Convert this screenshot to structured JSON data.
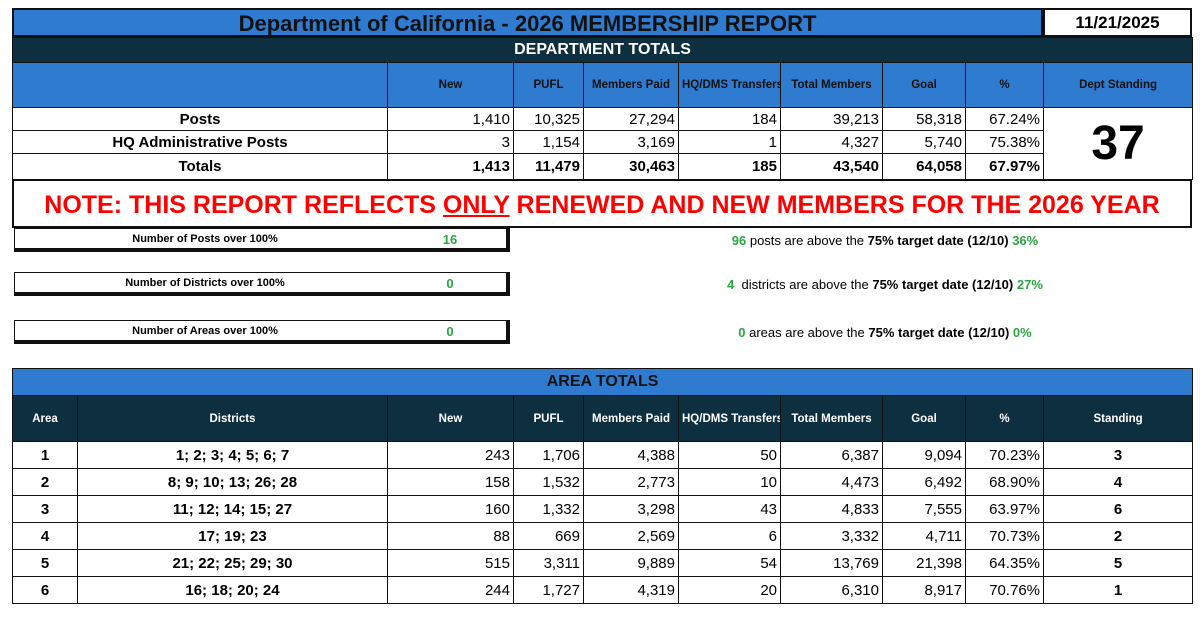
{
  "title": "Department of California - 2026 MEMBERSHIP REPORT",
  "date": "11/21/2025",
  "dept": {
    "section": "DEPARTMENT TOTALS",
    "headers": [
      "",
      "New",
      "PUFL",
      "Members Paid",
      "HQ/DMS Transfers",
      "Total Members",
      "Goal",
      "%",
      "Dept Standing"
    ],
    "rows": [
      {
        "label": "Posts",
        "values": [
          "1,410",
          "10,325",
          "27,294",
          "184",
          "39,213",
          "58,318",
          "67.24%"
        ]
      },
      {
        "label": "HQ Administrative Posts",
        "values": [
          "3",
          "1,154",
          "3,169",
          "1",
          "4,327",
          "5,740",
          "75.38%"
        ]
      },
      {
        "label": "Totals",
        "values": [
          "1,413",
          "11,479",
          "30,463",
          "185",
          "43,540",
          "64,058",
          "67.97%"
        ]
      }
    ],
    "standing": "37"
  },
  "note": {
    "pre": "NOTE: THIS REPORT REFLECTS ",
    "underlined": "ONLY",
    "post": " RENEWED AND NEW MEMBERS FOR THE 2026 YEAR"
  },
  "summary": [
    {
      "label": "Number of Posts over 100%",
      "value": "16",
      "count": "96",
      "text": " posts are above the ",
      "target": "75% target date (12/10)",
      "pct": "36%"
    },
    {
      "label": "Number of Districts over 100%",
      "value": "0",
      "count": "4",
      "text": "  districts are above the ",
      "target": "75% target date (12/10)",
      "pct": "27%"
    },
    {
      "label": "Number of Areas over 100%",
      "value": "0",
      "count": "0",
      "text": " areas are above the ",
      "target": "75% target date (12/10)",
      "pct": "0%"
    }
  ],
  "area": {
    "section": "AREA TOTALS",
    "headers": [
      "Area",
      "Districts",
      "New",
      "PUFL",
      "Members Paid",
      "HQ/DMS Transfers",
      "Total Members",
      "Goal",
      "%",
      "Standing"
    ],
    "rows": [
      [
        "1",
        "1; 2; 3; 4; 5; 6; 7",
        "243",
        "1,706",
        "4,388",
        "50",
        "6,387",
        "9,094",
        "70.23%",
        "3"
      ],
      [
        "2",
        "8; 9; 10; 13; 26; 28",
        "158",
        "1,532",
        "2,773",
        "10",
        "4,473",
        "6,492",
        "68.90%",
        "4"
      ],
      [
        "3",
        "11; 12; 14; 15; 27",
        "160",
        "1,332",
        "3,298",
        "43",
        "4,833",
        "7,555",
        "63.97%",
        "6"
      ],
      [
        "4",
        "17; 19; 23",
        "88",
        "669",
        "2,569",
        "6",
        "3,332",
        "4,711",
        "70.73%",
        "2"
      ],
      [
        "5",
        "21; 22; 25; 29; 30",
        "515",
        "3,311",
        "9,889",
        "54",
        "13,769",
        "21,398",
        "64.35%",
        "5"
      ],
      [
        "6",
        "16; 18; 20; 24",
        "244",
        "1,727",
        "4,319",
        "20",
        "6,310",
        "8,917",
        "70.76%",
        "1"
      ]
    ]
  }
}
